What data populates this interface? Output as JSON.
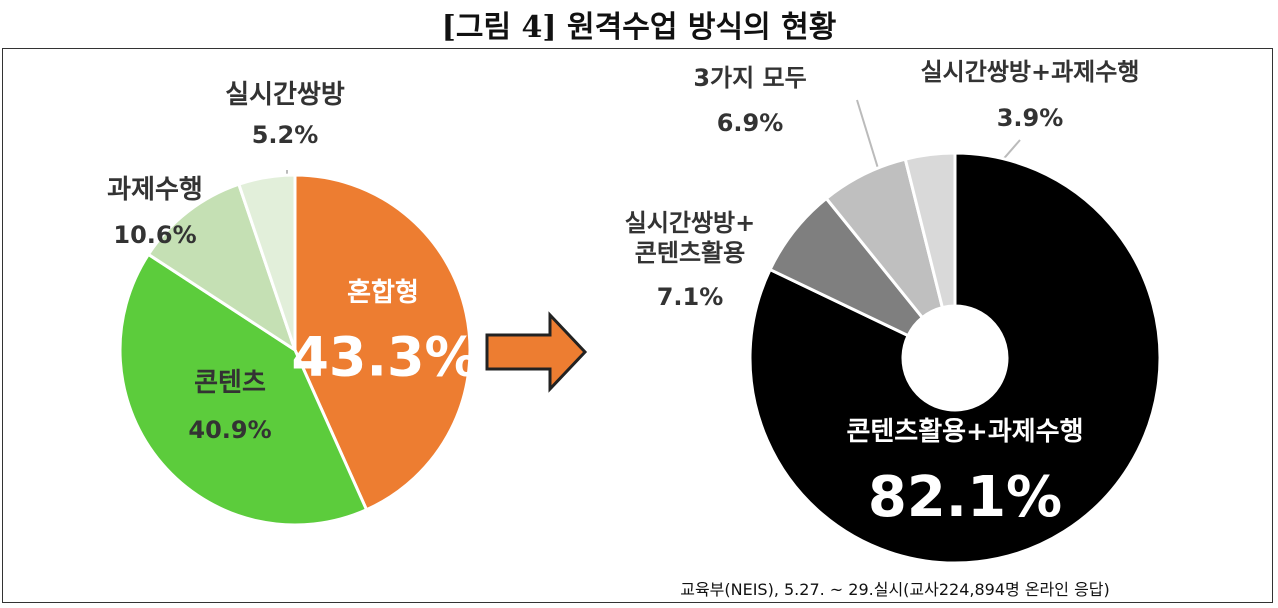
{
  "title": "[그림 4] 원격수업 방식의 현황",
  "source": "교육부(NEIS),  5.27. ~ 29.실시(교사224,894명 온라인 응답)",
  "chart_data": [
    {
      "type": "pie",
      "categories": [
        "혼합형",
        "콘텐츠",
        "과제수행",
        "실시간쌍방"
      ],
      "values": [
        43.3,
        40.9,
        10.6,
        5.2
      ],
      "value_labels": [
        "43.3%",
        "40.9%",
        "10.6%",
        "5.2%"
      ],
      "colors": [
        "#ed7d31",
        "#5ccc3c",
        "#c5e0b4",
        "#e2efda"
      ]
    },
    {
      "type": "donut",
      "categories": [
        "콘텐츠활용+과제수행",
        "실시간쌍방+\n콘텐츠활용",
        "3가지 모두",
        "실시간쌍방+과제수행"
      ],
      "values": [
        82.1,
        7.1,
        6.9,
        3.9
      ],
      "value_labels": [
        "82.1%",
        "7.1%",
        "6.9%",
        "3.9%"
      ],
      "colors": [
        "#000000",
        "#7f7f7f",
        "#bfbfbf",
        "#d9d9d9"
      ]
    }
  ]
}
